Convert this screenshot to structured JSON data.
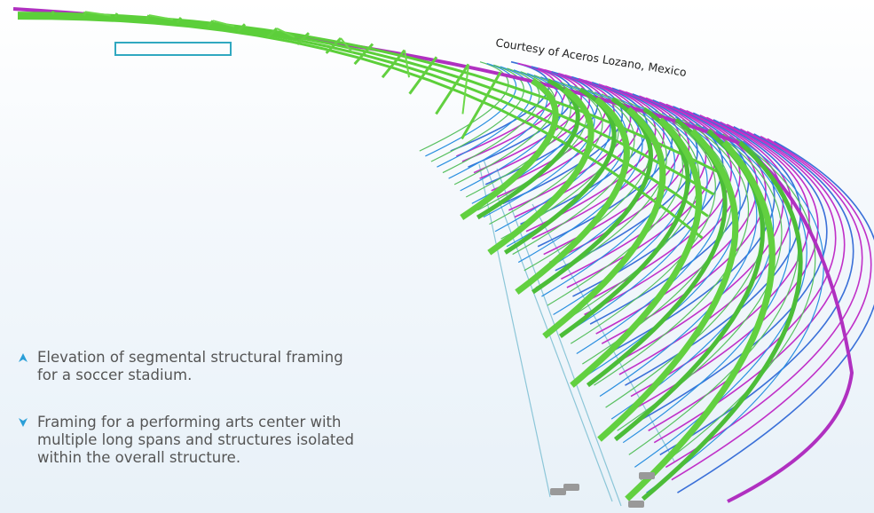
{
  "credit": "Courtesy of Aceros Lozano, Mexico",
  "captions": [
    {
      "lines": [
        "Elevation of segmental structural framing",
        "for a soccer stadium."
      ]
    },
    {
      "lines": [
        "Framing for a performing arts center with",
        "multiple long spans and structures isolated",
        "within the overall structure."
      ]
    }
  ]
}
